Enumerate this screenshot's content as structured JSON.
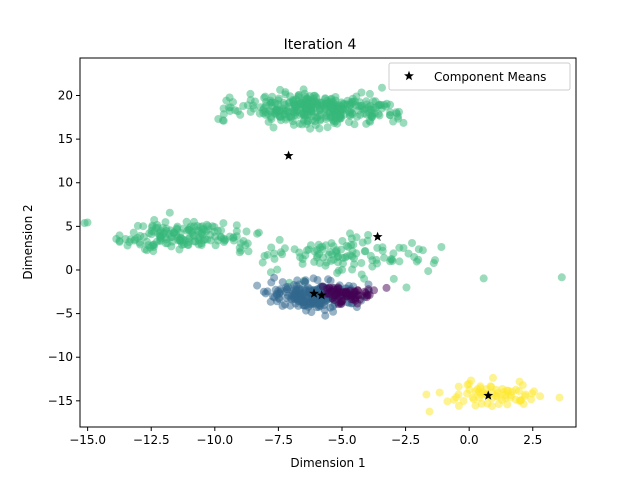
{
  "chart_data": {
    "type": "scatter",
    "title": "Iteration 4",
    "xlabel": "Dimension 1",
    "ylabel": "Dimension 2",
    "xlim": [
      -15.3,
      4.2
    ],
    "ylim": [
      -18.0,
      24.3
    ],
    "xticks": [
      -15.0,
      -12.5,
      -10.0,
      -7.5,
      -5.0,
      -2.5,
      0.0,
      2.5
    ],
    "xtick_labels": [
      "−15.0",
      "−12.5",
      "−10.0",
      "−7.5",
      "−5.0",
      "−2.5",
      "0.0",
      "2.5"
    ],
    "yticks": [
      -15,
      -10,
      -5,
      0,
      5,
      10,
      15,
      20
    ],
    "ytick_labels": [
      "−15",
      "−10",
      "−5",
      "0",
      "5",
      "10",
      "15",
      "20"
    ],
    "grid": false,
    "legend": {
      "position": "top-right",
      "entries": [
        "Component Means"
      ]
    },
    "point_alpha": 0.5,
    "clusters": [
      {
        "color": "#35b779",
        "center": [
          -6.2,
          18.5
        ],
        "spread": [
          1.5,
          0.9
        ],
        "count": 360
      },
      {
        "color": "#35b779",
        "center": [
          -11.2,
          3.8
        ],
        "spread": [
          1.2,
          0.8
        ],
        "count": 160
      },
      {
        "color": "#35b779",
        "center": [
          -5.3,
          1.8
        ],
        "spread": [
          1.5,
          0.9
        ],
        "count": 90
      },
      {
        "color": "#35b779",
        "center": [
          -4.0,
          0.2
        ],
        "spread": [
          2.6,
          1.5
        ],
        "count": 30
      },
      {
        "color": "#31688e",
        "center": [
          -6.1,
          -3.0
        ],
        "spread": [
          0.85,
          0.8
        ],
        "count": 240
      },
      {
        "color": "#440154",
        "center": [
          -4.7,
          -2.8
        ],
        "spread": [
          0.55,
          0.55
        ],
        "count": 70
      },
      {
        "color": "#fde725",
        "center": [
          0.8,
          -14.4
        ],
        "spread": [
          1.0,
          0.8
        ],
        "count": 70
      }
    ],
    "means": {
      "name": "Component Means",
      "points": [
        [
          -7.1,
          13.1
        ],
        [
          -3.6,
          3.8
        ],
        [
          -6.1,
          -2.7
        ],
        [
          -5.8,
          -2.9
        ],
        [
          0.75,
          -14.4
        ]
      ]
    }
  }
}
